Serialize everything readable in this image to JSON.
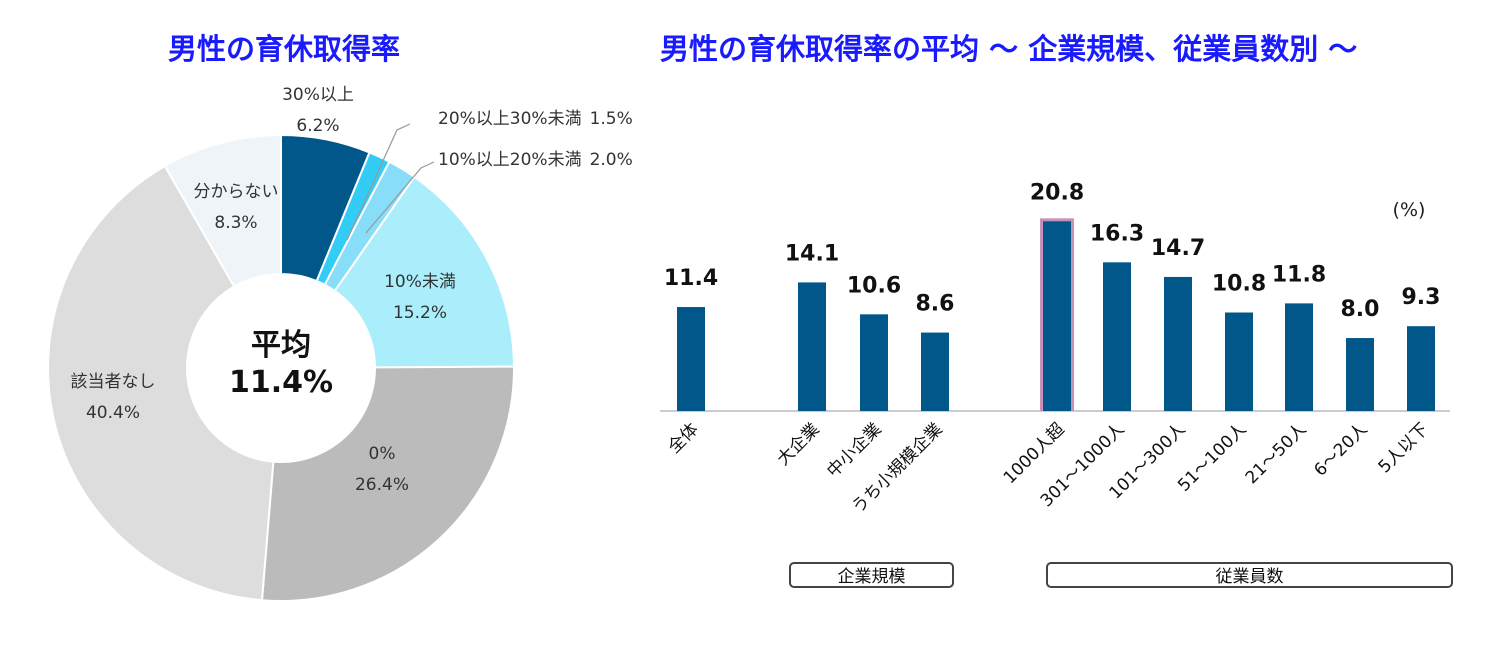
{
  "chart_data": [
    {
      "type": "donut",
      "title": "男性の育休取得率",
      "center_label": "平均",
      "center_value": "11.4%",
      "slices": [
        {
          "name": "30%以上",
          "value": 6.2,
          "value_label": "6.2%",
          "color": "#02578a"
        },
        {
          "name": "20%以上30%未満",
          "value": 1.5,
          "value_label": "1.5%",
          "color": "#33ccf5"
        },
        {
          "name": "10%以上20%未満",
          "value": 2.0,
          "value_label": "2.0%",
          "color": "#88ddf9"
        },
        {
          "name": "10%未満",
          "value": 15.2,
          "value_label": "15.2%",
          "color": "#aaeefc"
        },
        {
          "name": "0%",
          "value": 26.4,
          "value_label": "26.4%",
          "color": "#bbbbbb"
        },
        {
          "name": "該当者なし",
          "value": 40.4,
          "value_label": "40.4%",
          "color": "#dddddd"
        },
        {
          "name": "分からない",
          "value": 8.3,
          "value_label": "8.3%",
          "color": "#eef4f8"
        }
      ]
    },
    {
      "type": "bar",
      "title": "男性の育休取得率の平均 ～ 企業規模、従業員数別 ～",
      "unit_label": "(%)",
      "categories": [
        "全体",
        "大企業",
        "中小企業",
        "うち小規模企業",
        "1000人超",
        "301～1000人",
        "101～300人",
        "51～100人",
        "21～50人",
        "6～20人",
        "5人以下"
      ],
      "values": [
        11.4,
        14.1,
        10.6,
        8.6,
        20.8,
        16.3,
        14.7,
        10.8,
        11.8,
        8.0,
        9.3
      ],
      "value_labels": [
        "11.4",
        "14.1",
        "10.6",
        "8.6",
        "20.8",
        "16.3",
        "14.7",
        "10.8",
        "11.8",
        "8.0",
        "9.3"
      ],
      "highlight_category": "1000人超",
      "groups": [
        {
          "label": "企業規模",
          "categories": [
            "大企業",
            "中小企業",
            "うち小規模企業"
          ]
        },
        {
          "label": "従業員数",
          "categories": [
            "1000人超",
            "301～1000人",
            "101～300人",
            "51～100人",
            "21～50人",
            "6～20人",
            "5人以下"
          ]
        }
      ],
      "ylim": [
        0,
        22
      ],
      "bar_color": "#02578a",
      "highlight_color": "#c990b8"
    }
  ]
}
